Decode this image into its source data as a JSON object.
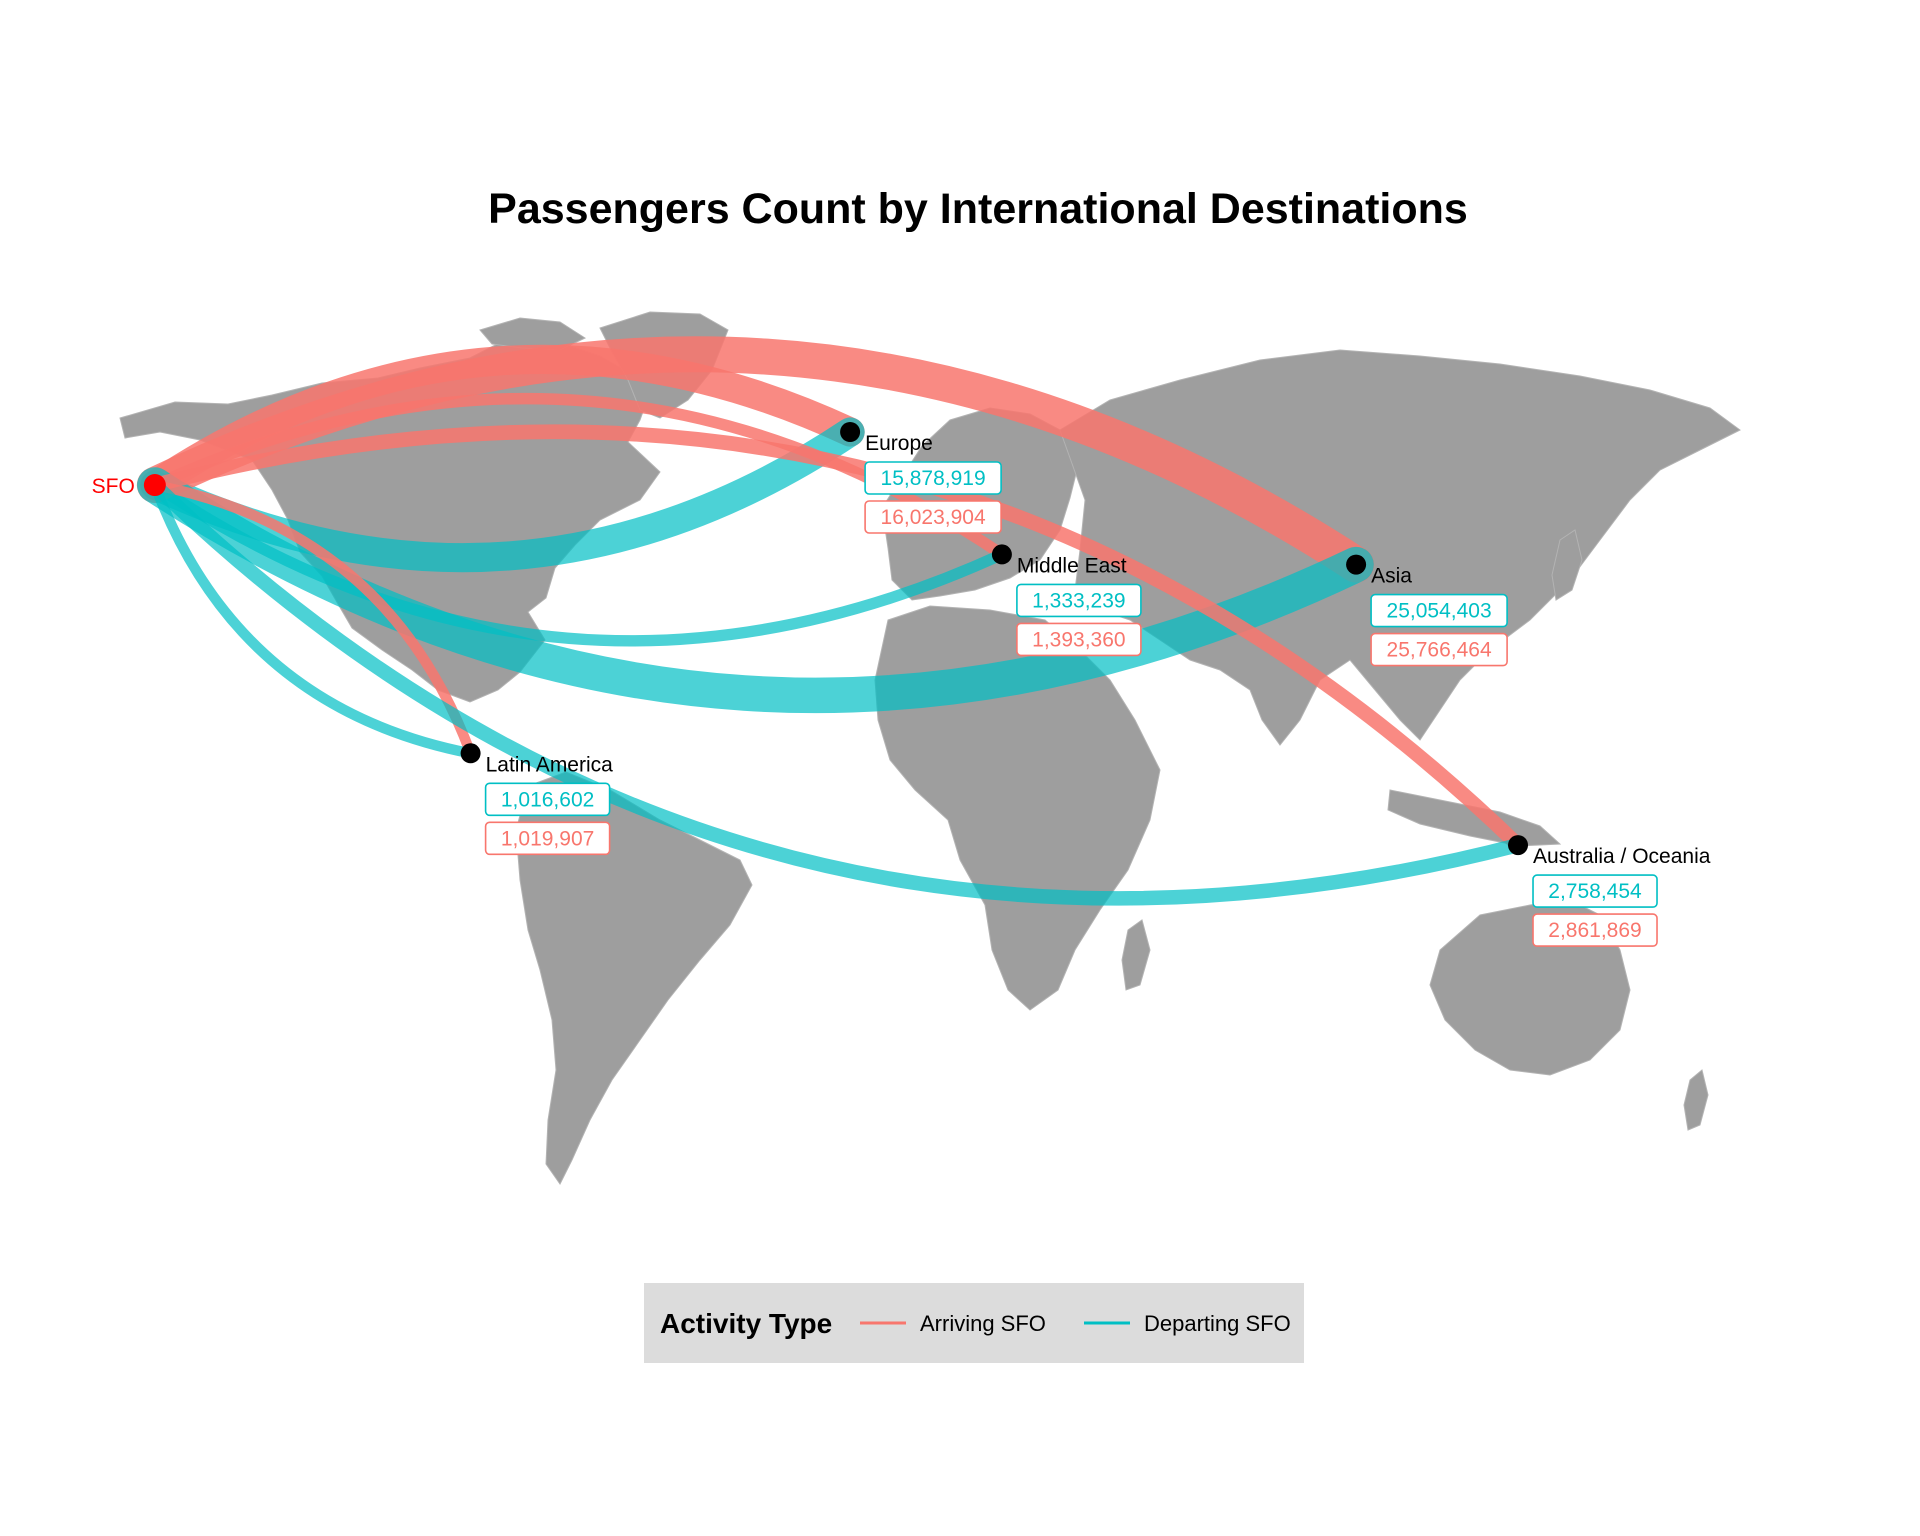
{
  "title": "Passengers Count by International Destinations",
  "colors": {
    "arriving": "#f8766d",
    "departing": "#00bfc4",
    "origin": "#ff0000",
    "land": "#9e9e9e",
    "node": "#000000"
  },
  "origin": {
    "name": "SFO",
    "lon": -122.4,
    "lat": 37.6
  },
  "chart_data": {
    "type": "flow-map",
    "title": "Passengers Count by International Destinations",
    "legend": {
      "title": "Activity Type",
      "placement": "bottom",
      "entries": [
        {
          "key": "arriving",
          "label": "Arriving SFO"
        },
        {
          "key": "departing",
          "label": "Departing SFO"
        }
      ]
    },
    "destinations": [
      {
        "key": "europe",
        "name": "Europe",
        "lon": 15,
        "lat": 48,
        "departing_display": "15,878,919",
        "arriving_display": "16,023,904",
        "departing": 15878919,
        "arriving": 16023904
      },
      {
        "key": "middle_east",
        "name": "Middle East",
        "lon": 45,
        "lat": 24,
        "departing_display": "1,333,239",
        "arriving_display": "1,393,360",
        "departing": 1333239,
        "arriving": 1393360
      },
      {
        "key": "asia",
        "name": "Asia",
        "lon": 115,
        "lat": 22,
        "departing_display": "25,054,403",
        "arriving_display": "25,766,464",
        "departing": 25054403,
        "arriving": 25766464
      },
      {
        "key": "latin_america",
        "name": "Latin America",
        "lon": -60,
        "lat": -15,
        "departing_display": "1,016,602",
        "arriving_display": "1,019,907",
        "departing": 1016602,
        "arriving": 1019907
      },
      {
        "key": "oceania",
        "name": "Australia / Oceania",
        "lon": 147,
        "lat": -33,
        "departing_display": "2,758,454",
        "arriving_display": "2,861,869",
        "departing": 2758454,
        "arriving": 2861869
      }
    ]
  }
}
